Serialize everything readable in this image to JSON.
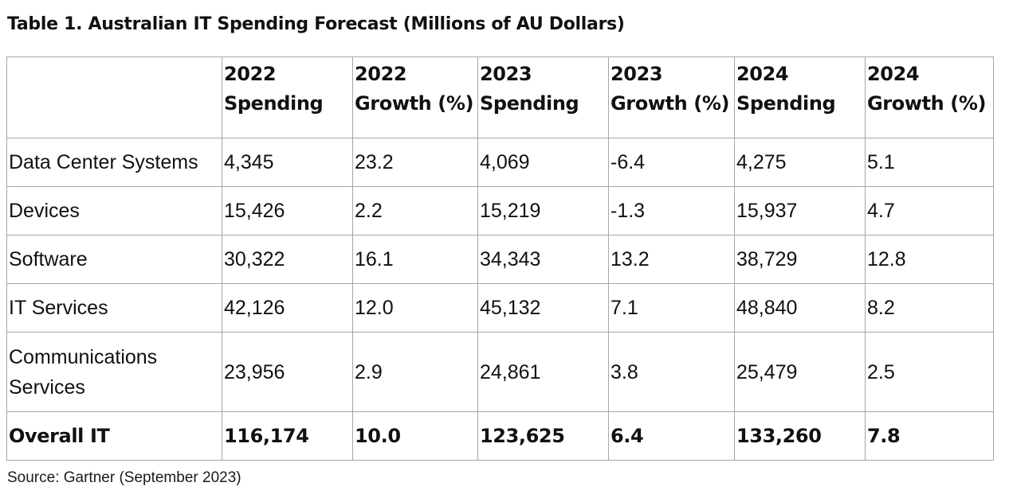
{
  "title": "Table 1. Australian IT Spending Forecast (Millions of AU Dollars)",
  "table": {
    "headers": [
      "",
      "2022 Spending",
      "2022 Growth (%)",
      "2023 Spending",
      "2023 Growth (%)",
      "2024 Spending",
      "2024 Growth (%)"
    ],
    "rows": [
      {
        "label": "Data Center Systems",
        "values": [
          "4,345",
          "23.2",
          "4,069",
          "-6.4",
          "4,275",
          "5.1"
        ]
      },
      {
        "label": "Devices",
        "values": [
          "15,426",
          "2.2",
          "15,219",
          "-1.3",
          "15,937",
          "4.7"
        ]
      },
      {
        "label": "Software",
        "values": [
          "30,322",
          "16.1",
          "34,343",
          "13.2",
          "38,729",
          "12.8"
        ]
      },
      {
        "label": "IT Services",
        "values": [
          "42,126",
          "12.0",
          "45,132",
          "7.1",
          "48,840",
          "8.2"
        ]
      },
      {
        "label": "Communications Services",
        "values": [
          "23,956",
          "2.9",
          "24,861",
          "3.8",
          "25,479",
          "2.5"
        ]
      },
      {
        "label": "Overall IT",
        "values": [
          "116,174",
          "10.0",
          "123,625",
          "6.4",
          "133,260",
          "7.8"
        ]
      }
    ]
  },
  "source": "Source: Gartner (September 2023)"
}
